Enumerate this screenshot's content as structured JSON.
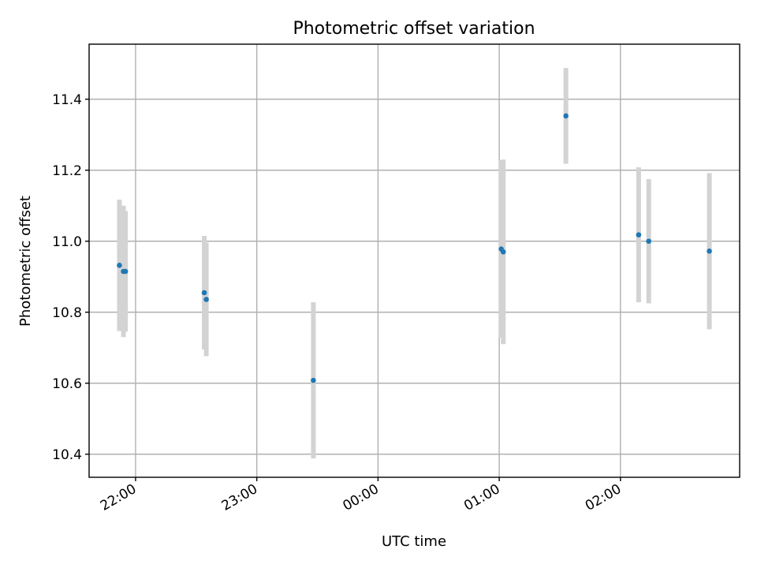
{
  "chart_data": {
    "type": "scatter",
    "title": "Photometric offset variation",
    "xlabel": "UTC time",
    "ylabel": "Photometric offset",
    "x_axis": {
      "format": "HH:MM",
      "start_label": "21:37",
      "end_label": "02:59",
      "ticks": [
        "21:37",
        "22:00",
        "23:00",
        "00:00",
        "01:00",
        "02:00"
      ],
      "tick_labels": [
        "",
        "22:00",
        "23:00",
        "00:00",
        "01:00",
        "02:00"
      ],
      "tick_rotation_deg": 30
    },
    "ylim": [
      10.335,
      11.555
    ],
    "yticks": [
      10.4,
      10.6,
      10.8,
      11.0,
      11.2,
      11.4
    ],
    "grid": true,
    "marker_color": "#1f77b4",
    "errorbar_color": "#d3d3d3",
    "points": [
      {
        "t": "21:52",
        "y": 10.932,
        "err": 0.185
      },
      {
        "t": "21:54",
        "y": 10.915,
        "err": 0.185
      },
      {
        "t": "21:55",
        "y": 10.915,
        "err": 0.17
      },
      {
        "t": "22:34",
        "y": 10.855,
        "err": 0.16
      },
      {
        "t": "22:35",
        "y": 10.836,
        "err": 0.16
      },
      {
        "t": "23:28",
        "y": 10.608,
        "err": 0.22
      },
      {
        "t": "01:01",
        "y": 10.978,
        "err": 0.25
      },
      {
        "t": "01:02",
        "y": 10.97,
        "err": 0.26
      },
      {
        "t": "01:33",
        "y": 11.353,
        "err": 0.135
      },
      {
        "t": "02:09",
        "y": 11.018,
        "err": 0.19
      },
      {
        "t": "02:14",
        "y": 11.0,
        "err": 0.175
      },
      {
        "t": "02:44",
        "y": 10.972,
        "err": 0.22
      }
    ]
  }
}
